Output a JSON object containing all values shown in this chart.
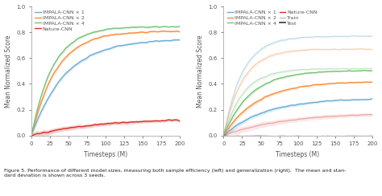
{
  "left_plot": {
    "xlabel": "Timesteps (M)",
    "ylabel": "Mean Normalized Score",
    "xlim": [
      0,
      200
    ],
    "ylim": [
      0,
      1.0
    ],
    "xticks": [
      0,
      25,
      50,
      75,
      100,
      125,
      150,
      175,
      200
    ],
    "yticks": [
      0.0,
      0.2,
      0.4,
      0.6,
      0.8,
      1.0
    ],
    "series": [
      {
        "label": "IMPALA-CNN × 1",
        "color": "#6baed6",
        "final": 0.75,
        "rate": 0.022
      },
      {
        "label": "IMPALA-CNN × 2",
        "color": "#fd8d3c",
        "final": 0.81,
        "rate": 0.03
      },
      {
        "label": "IMPALA-CNN × 4",
        "color": "#74c476",
        "final": 0.845,
        "rate": 0.035
      },
      {
        "label": "Nature-CNN",
        "color": "#d73027",
        "final": 0.135,
        "rate": 0.011
      }
    ]
  },
  "right_plot": {
    "xlabel": "Timesteps (M)",
    "ylabel": "Mean Normalized Score",
    "xlim": [
      0,
      200
    ],
    "ylim": [
      0,
      1.0
    ],
    "xticks": [
      0,
      25,
      50,
      75,
      100,
      125,
      150,
      175,
      200
    ],
    "yticks": [
      0.0,
      0.2,
      0.4,
      0.6,
      0.8,
      1.0
    ],
    "series": [
      {
        "label": "IMPALA-CNN × 1",
        "color": "#6baed6",
        "final_test": 0.29,
        "final_train": 0.77,
        "rate_test": 0.018,
        "rate_train": 0.04
      },
      {
        "label": "IMPALA-CNN × 2",
        "color": "#fd8d3c",
        "final_test": 0.42,
        "final_train": 0.67,
        "rate_test": 0.022,
        "rate_train": 0.04
      },
      {
        "label": "IMPALA-CNN × 4",
        "color": "#74c476",
        "final_test": 0.505,
        "final_train": 0.52,
        "rate_test": 0.028,
        "rate_train": 0.038
      },
      {
        "label": "Nature-CNN",
        "color": "#d73027",
        "final_test": 0.0,
        "final_train": 0.18,
        "rate_test": 0.0,
        "rate_train": 0.012
      }
    ],
    "legend_extra": [
      {
        "label": "Train",
        "color": "#bbbbbb",
        "lw": 0.9
      },
      {
        "label": "Test",
        "color": "#333333",
        "lw": 1.2
      }
    ]
  },
  "caption": "Figure 5. Performance of different model sizes, measuring both sample efficiency (left) and generalization (right).  The mean and stan-\ndard deviation is shown across 3 seeds.",
  "bg_color": "#ffffff",
  "spine_color": "#aaaaaa",
  "tick_color": "#555555",
  "tick_fontsize": 5,
  "label_fontsize": 5.5,
  "legend_fontsize": 4.5,
  "caption_fontsize": 4.5,
  "lw_main": 1.0,
  "lw_train": 0.8
}
